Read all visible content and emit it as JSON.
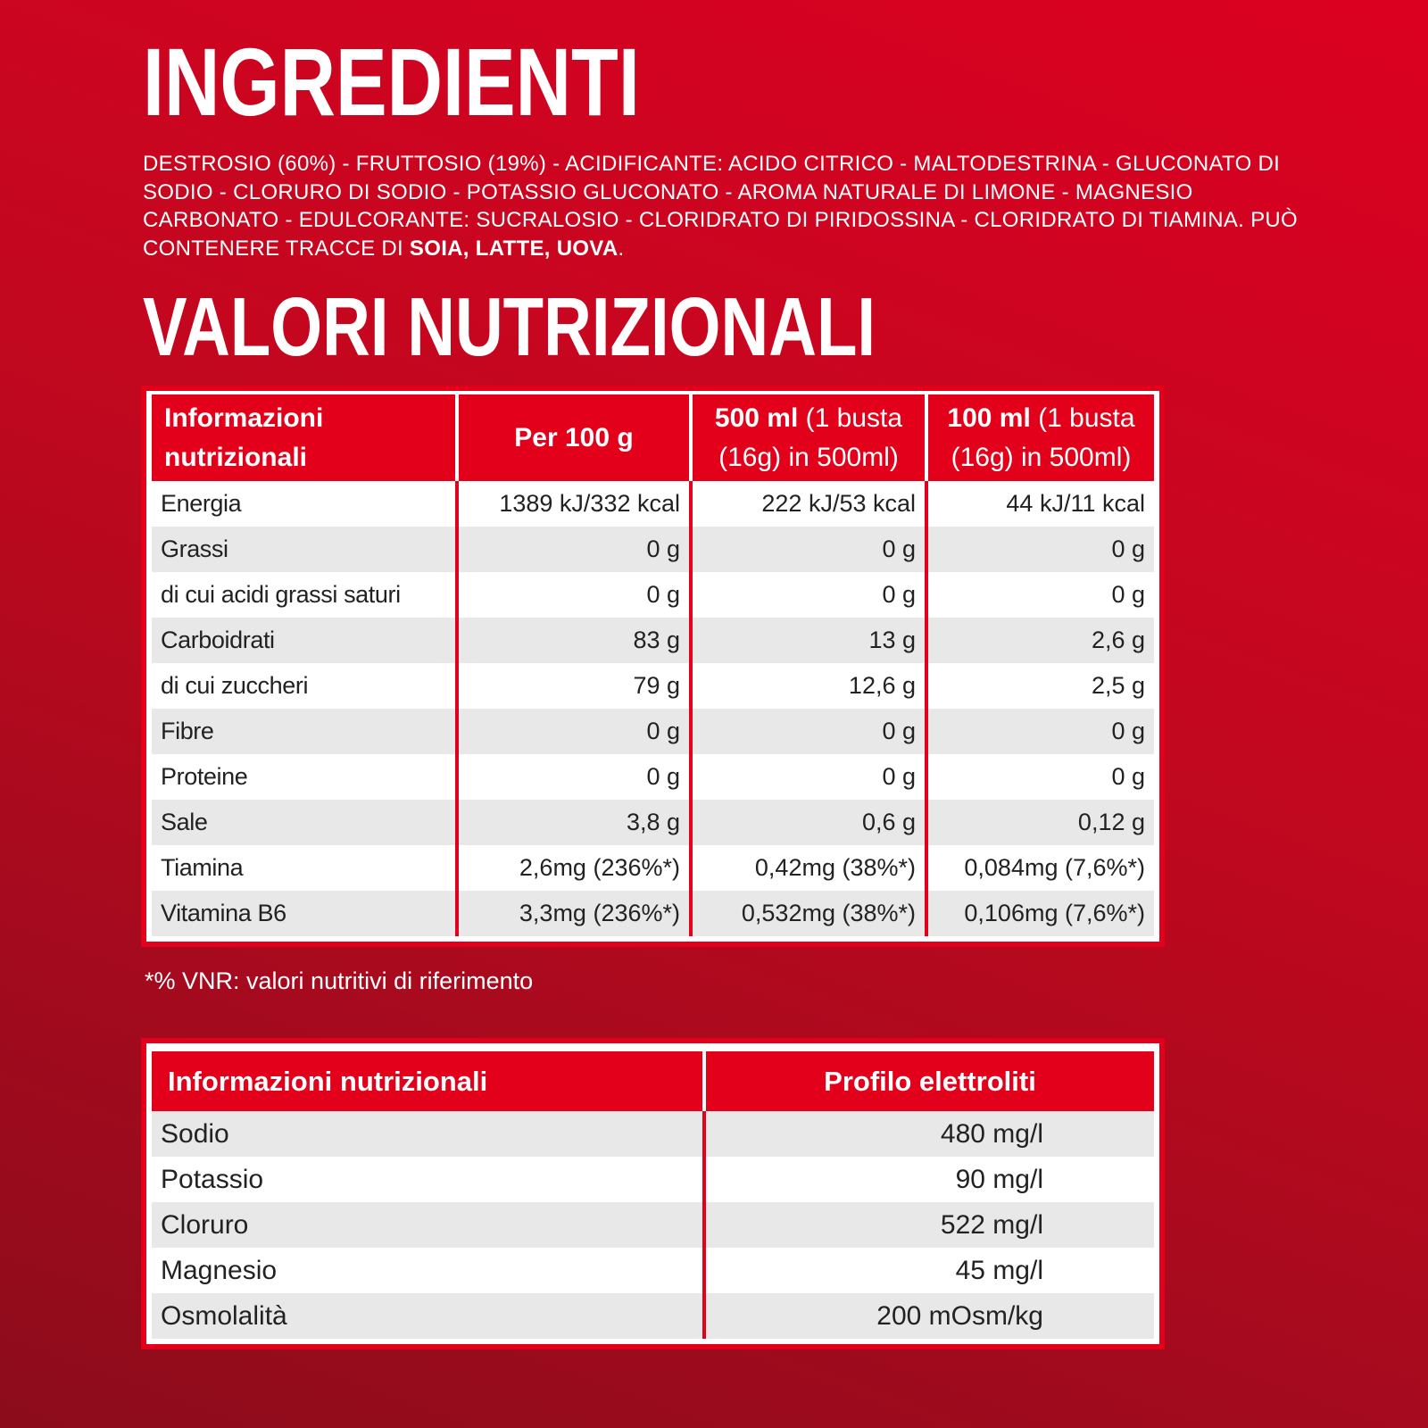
{
  "ingredients": {
    "title": "INGREDIENTI",
    "text": "DESTROSIO (60%) - FRUTTOSIO (19%) - ACIDIFICANTE: ACIDO CITRICO - MALTODESTRINA - GLUCONATO DI SODIO - CLORURO DI SODIO - POTASSIO GLUCONATO - AROMA NATURALE DI LIMONE - MAGNESIO CARBONATO - EDULCORANTE: SUCRALOSIO - CLORIDRATO DI PIRIDOSSINA - CLORIDRATO DI TIAMINA. PUÒ CONTENERE TRACCE DI ",
    "allergens": "SOIA, LATTE, UOVA",
    "end": "."
  },
  "nutrition": {
    "title": "VALORI NUTRIZIONALI",
    "table": {
      "header": [
        {
          "bold": "Informazioni nutrizionali"
        },
        {
          "bold": "Per 100 g"
        },
        {
          "bold": "500 ml",
          "text": " (1 busta (16g) in 500ml)"
        },
        {
          "bold": "100 ml",
          "text": " (1 busta (16g) in 500ml)"
        }
      ],
      "rows": [
        [
          "Energia",
          "1389 kJ/332 kcal",
          "222 kJ/53 kcal",
          "44 kJ/11 kcal"
        ],
        [
          "Grassi",
          "0 g",
          "0 g",
          "0 g"
        ],
        [
          "di cui acidi grassi saturi",
          "0 g",
          "0 g",
          "0 g"
        ],
        [
          "Carboidrati",
          "83 g",
          "13 g",
          "2,6 g"
        ],
        [
          "di cui zuccheri",
          "79 g",
          "12,6 g",
          "2,5 g"
        ],
        [
          "Fibre",
          "0 g",
          "0 g",
          "0 g"
        ],
        [
          "Proteine",
          "0 g",
          "0 g",
          "0 g"
        ],
        [
          "Sale",
          "3,8 g",
          "0,6 g",
          "0,12 g"
        ],
        [
          "Tiamina",
          "2,6mg (236%*)",
          "0,42mg (38%*)",
          "0,084mg (7,6%*)"
        ],
        [
          "Vitamina B6",
          "3,3mg (236%*)",
          "0,532mg (38%*)",
          "0,106mg (7,6%*)"
        ]
      ]
    },
    "footnote": "*% VNR: valori nutritivi di riferimento"
  },
  "electrolytes": {
    "header": [
      "Informazioni nutrizionali",
      "Profilo elettroliti"
    ],
    "rows": [
      [
        "Sodio",
        "480 mg/l"
      ],
      [
        "Potassio",
        "90 mg/l"
      ],
      [
        "Cloruro",
        "522 mg/l"
      ],
      [
        "Magnesio",
        "45 mg/l"
      ],
      [
        "Osmolalità",
        "200 mOsm/kg"
      ]
    ]
  }
}
